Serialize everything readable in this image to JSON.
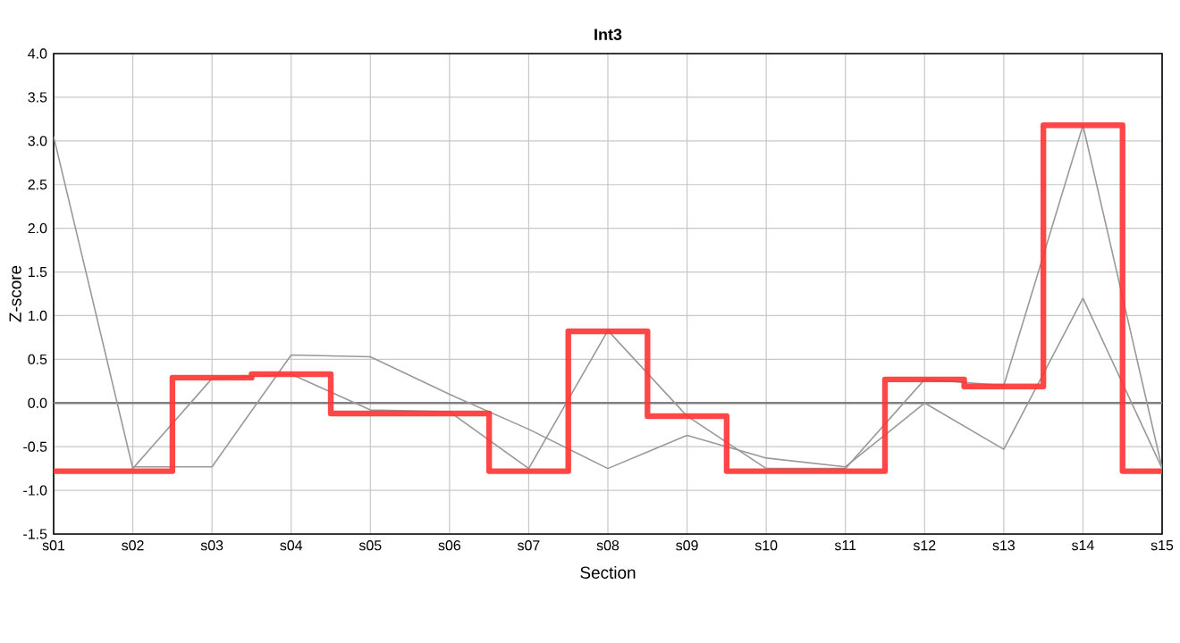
{
  "chart_data": {
    "type": "line",
    "title": "Int3",
    "xlabel": "Section",
    "ylabel": "Z-score",
    "categories": [
      "s01",
      "s02",
      "s03",
      "s04",
      "s05",
      "s06",
      "s07",
      "s08",
      "s09",
      "s10",
      "s11",
      "s12",
      "s13",
      "s14",
      "s15"
    ],
    "series": [
      {
        "color": "#999999",
        "values": [
          3.05,
          -0.75,
          0.28,
          0.33,
          -0.08,
          -0.1,
          -0.75,
          0.83,
          -0.15,
          -0.75,
          -0.75,
          0.27,
          0.2,
          3.18,
          -0.75
        ]
      },
      {
        "color": "#999999",
        "values": [
          null,
          -0.73,
          -0.73,
          0.55,
          0.53,
          0.1,
          -0.3,
          -0.75,
          -0.37,
          -0.63,
          -0.73,
          0.0,
          -0.53,
          1.2,
          -0.75
        ]
      },
      {
        "type": "step",
        "color": "#ff3333",
        "values": [
          -0.78,
          -0.78,
          0.29,
          0.33,
          -0.12,
          -0.12,
          -0.78,
          0.82,
          -0.15,
          -0.78,
          -0.78,
          0.27,
          0.19,
          3.18,
          -0.78
        ]
      }
    ],
    "ylim": [
      -1.5,
      4.0
    ],
    "yticks": [
      {
        "value": -1.5,
        "label": "-1.5"
      },
      {
        "value": -1.0,
        "label": "-1.0"
      },
      {
        "value": -0.5,
        "label": "-0.5"
      },
      {
        "value": 0.0,
        "label": "0.0"
      },
      {
        "value": 0.5,
        "label": "0.5"
      },
      {
        "value": 1.0,
        "label": "1.0"
      },
      {
        "value": 1.5,
        "label": "1.5"
      },
      {
        "value": 2.0,
        "label": "2.0"
      },
      {
        "value": 2.5,
        "label": "2.5"
      },
      {
        "value": 3.0,
        "label": "3.0"
      },
      {
        "value": 3.5,
        "label": "3.5"
      },
      {
        "value": 4.0,
        "label": "4.0"
      }
    ],
    "ref_lines": [
      {
        "axis": "y",
        "value": 0.0,
        "color": "#808080"
      }
    ],
    "grid": true,
    "marker": "none",
    "line_style": "solid"
  }
}
